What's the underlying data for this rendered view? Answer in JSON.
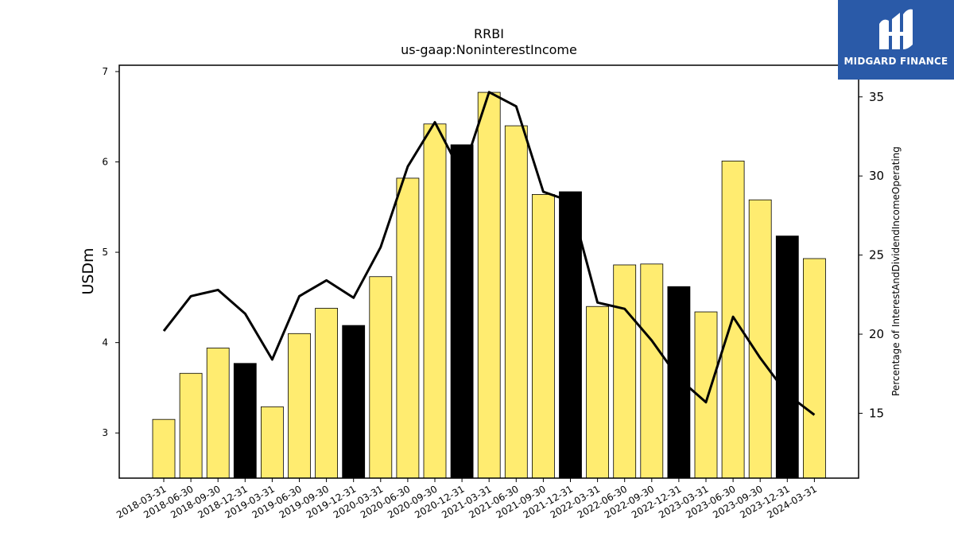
{
  "brand": {
    "name": "MIDGARD FINANCE",
    "bg_color": "#2a5aa8"
  },
  "chart_data": {
    "type": "bar",
    "title": "RRBI",
    "subtitle": "us-gaap:NoninterestIncome",
    "ylabel": "USDm",
    "y2label": "Percentage of InterestAndDividendIncomeOperating",
    "ylim": [
      2.5,
      7.07
    ],
    "y2lim": [
      10.9,
      37.0
    ],
    "yticks": [
      3,
      4,
      5,
      6,
      7
    ],
    "y2ticks": [
      15,
      20,
      25,
      30,
      35
    ],
    "categories": [
      "2018-03-31",
      "2018-06-30",
      "2018-09-30",
      "2018-12-31",
      "2019-03-31",
      "2019-06-30",
      "2019-09-30",
      "2019-12-31",
      "2020-03-31",
      "2020-06-30",
      "2020-09-30",
      "2020-12-31",
      "2021-03-31",
      "2021-06-30",
      "2021-09-30",
      "2021-12-31",
      "2022-03-31",
      "2022-06-30",
      "2022-09-30",
      "2022-12-31",
      "2023-03-31",
      "2023-06-30",
      "2023-09-30",
      "2023-12-31",
      "2024-03-31"
    ],
    "series": [
      {
        "kind": "bar",
        "values": [
          3.15,
          3.66,
          3.94,
          3.77,
          3.29,
          4.1,
          4.38,
          4.19,
          4.73,
          5.82,
          6.42,
          6.19,
          6.77,
          6.4,
          5.64,
          5.67,
          4.4,
          4.86,
          4.87,
          4.62,
          4.34,
          6.01,
          5.58,
          5.18,
          4.93
        ]
      },
      {
        "kind": "line",
        "axis": "right",
        "values": [
          20.2,
          22.4,
          22.8,
          21.3,
          18.4,
          22.4,
          23.4,
          22.3,
          25.5,
          30.6,
          33.4,
          30.1,
          35.3,
          34.4,
          29.0,
          28.4,
          22.0,
          21.6,
          19.6,
          17.2,
          15.7,
          21.1,
          18.5,
          16.2,
          14.9
        ]
      }
    ],
    "colors": {
      "bar": "#ffec70",
      "bar_q4": "#000000",
      "line": "#000000"
    },
    "grid": false,
    "legend": "none"
  }
}
